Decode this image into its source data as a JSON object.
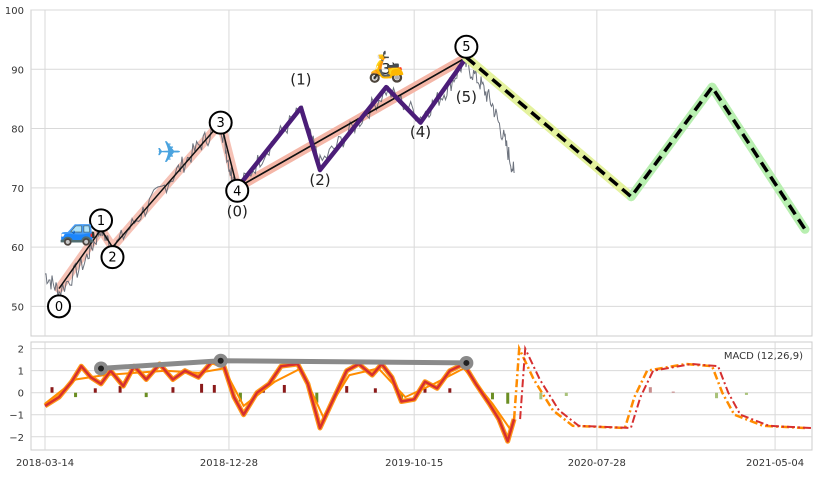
{
  "chart_data": [
    {
      "type": "line",
      "panel": "price",
      "ylim": [
        45,
        100
      ],
      "yticks": [
        50,
        60,
        70,
        80,
        90,
        100
      ],
      "grid": true,
      "price_path": [
        {
          "x": "2018-03-14",
          "y": 55.5
        },
        {
          "x": "2018-04-05",
          "y": 52.5
        },
        {
          "x": "2018-05-15",
          "y": 57.5
        },
        {
          "x": "2018-06-10",
          "y": 63.2
        },
        {
          "x": "2018-06-28",
          "y": 59.6
        },
        {
          "x": "2018-08-15",
          "y": 66.0
        },
        {
          "x": "2018-10-01",
          "y": 72.0
        },
        {
          "x": "2018-11-10",
          "y": 77.0
        },
        {
          "x": "2018-12-15",
          "y": 80.8
        },
        {
          "x": "2018-12-30",
          "y": 73.0
        },
        {
          "x": "2019-01-10",
          "y": 69.5
        },
        {
          "x": "2019-03-01",
          "y": 77.0
        },
        {
          "x": "2019-04-20",
          "y": 83.0
        },
        {
          "x": "2019-05-20",
          "y": 74.0
        },
        {
          "x": "2019-07-10",
          "y": 80.0
        },
        {
          "x": "2019-09-01",
          "y": 86.5
        },
        {
          "x": "2019-10-25",
          "y": 82.0
        },
        {
          "x": "2019-12-01",
          "y": 86.0
        },
        {
          "x": "2020-01-01",
          "y": 91.2
        },
        {
          "x": "2020-01-25",
          "y": 88.0
        },
        {
          "x": "2020-02-15",
          "y": 84.0
        },
        {
          "x": "2020-03-05",
          "y": 78.0
        },
        {
          "x": "2020-03-20",
          "y": 72.5
        }
      ],
      "primary_wave": [
        {
          "label": "0",
          "x": "2018-04-05",
          "y": 53.0,
          "label_y": 50.0
        },
        {
          "label": "1",
          "x": "2018-06-10",
          "y": 63.0,
          "label_y": 64.5
        },
        {
          "label": "2",
          "x": "2018-06-28",
          "y": 60.0,
          "label_y": 58.3
        },
        {
          "label": "3",
          "x": "2018-12-15",
          "y": 81.0,
          "label_y": 81.0
        },
        {
          "label": "4",
          "x": "2019-01-10",
          "y": 70.0,
          "label_y": 69.5
        },
        {
          "label": "5",
          "x": "2020-01-05",
          "y": 92.0,
          "label_y": 93.8
        }
      ],
      "subwave": {
        "points": [
          {
            "x": "2019-01-10",
            "y": 70.0
          },
          {
            "x": "2019-04-20",
            "y": 83.5
          },
          {
            "x": "2019-05-20",
            "y": 73.0
          },
          {
            "x": "2019-09-01",
            "y": 87.0
          },
          {
            "x": "2019-10-25",
            "y": 81.0
          },
          {
            "x": "2020-01-05",
            "y": 92.0
          }
        ],
        "labels": [
          {
            "text": "(0)",
            "x": "2019-01-10",
            "y": 65.2
          },
          {
            "text": "(1)",
            "x": "2019-04-20",
            "y": 87.4
          },
          {
            "text": "(2)",
            "x": "2019-05-20",
            "y": 70.5
          },
          {
            "text": "(3)",
            "x": "2019-09-01",
            "y": 89.2
          },
          {
            "text": "(4)",
            "x": "2019-10-25",
            "y": 78.6
          },
          {
            "text": "(5)",
            "x": "2020-01-05",
            "y": 84.5
          }
        ]
      },
      "forecast": [
        {
          "x": "2020-01-05",
          "y": 92.0
        },
        {
          "x": "2020-09-20",
          "y": 68.5
        },
        {
          "x": "2021-01-25",
          "y": 87.0
        },
        {
          "x": "2021-06-20",
          "y": 63.0
        }
      ],
      "icons": [
        {
          "name": "car-icon",
          "glyph": "🚙",
          "x": "2018-05-05",
          "y": 63.0
        },
        {
          "name": "airplane-icon",
          "glyph": "✈",
          "x": "2018-09-25",
          "y": 76.0
        },
        {
          "name": "scooter-icon",
          "glyph": "🛵",
          "x": "2019-09-01",
          "y": 90.5
        }
      ],
      "colors": {
        "price": "#5d6470",
        "primary_band": "#f4b3a4",
        "primary_line": "#111111",
        "subwave": "#4b1d78",
        "subwave_band": "#f4b3a4",
        "forecast_band_1": "#e4f29e",
        "forecast_band_2": "#b8efb0",
        "forecast_line": "#000000"
      }
    },
    {
      "type": "line",
      "panel": "macd",
      "legend": "MACD (12,26,9)",
      "ylim": [
        -2.6,
        2.3
      ],
      "yticks": [
        -2,
        -1,
        0,
        1,
        2
      ],
      "xlim": [
        "2018-02-20",
        "2021-07-01"
      ],
      "xticks": [
        "2018-03-14",
        "2018-12-28",
        "2019-10-15",
        "2020-07-28",
        "2021-05-04"
      ],
      "macd": [
        {
          "x": "2018-03-14",
          "y": -0.6
        },
        {
          "x": "2018-04-05",
          "y": -0.2
        },
        {
          "x": "2018-04-25",
          "y": 0.5
        },
        {
          "x": "2018-05-10",
          "y": 1.2
        },
        {
          "x": "2018-05-25",
          "y": 0.7
        },
        {
          "x": "2018-06-10",
          "y": 0.4
        },
        {
          "x": "2018-06-25",
          "y": 1.0
        },
        {
          "x": "2018-07-15",
          "y": 0.3
        },
        {
          "x": "2018-08-01",
          "y": 1.2
        },
        {
          "x": "2018-08-20",
          "y": 0.6
        },
        {
          "x": "2018-09-10",
          "y": 1.3
        },
        {
          "x": "2018-10-01",
          "y": 0.6
        },
        {
          "x": "2018-10-20",
          "y": 1.0
        },
        {
          "x": "2018-11-10",
          "y": 0.7
        },
        {
          "x": "2018-12-01",
          "y": 1.4
        },
        {
          "x": "2018-12-20",
          "y": 1.2
        },
        {
          "x": "2019-01-05",
          "y": -0.2
        },
        {
          "x": "2019-01-20",
          "y": -1.0
        },
        {
          "x": "2019-02-10",
          "y": 0.0
        },
        {
          "x": "2019-03-01",
          "y": 0.4
        },
        {
          "x": "2019-03-20",
          "y": 1.2
        },
        {
          "x": "2019-04-15",
          "y": 1.3
        },
        {
          "x": "2019-05-01",
          "y": 0.4
        },
        {
          "x": "2019-05-20",
          "y": -1.6
        },
        {
          "x": "2019-06-10",
          "y": -0.3
        },
        {
          "x": "2019-07-01",
          "y": 1.0
        },
        {
          "x": "2019-07-20",
          "y": 1.3
        },
        {
          "x": "2019-08-10",
          "y": 0.8
        },
        {
          "x": "2019-08-25",
          "y": 1.3
        },
        {
          "x": "2019-09-10",
          "y": 0.7
        },
        {
          "x": "2019-09-25",
          "y": -0.4
        },
        {
          "x": "2019-10-15",
          "y": -0.3
        },
        {
          "x": "2019-11-01",
          "y": 0.5
        },
        {
          "x": "2019-11-20",
          "y": 0.2
        },
        {
          "x": "2019-12-10",
          "y": 1.0
        },
        {
          "x": "2020-01-01",
          "y": 1.3
        },
        {
          "x": "2020-01-20",
          "y": 0.4
        },
        {
          "x": "2020-02-10",
          "y": -0.5
        },
        {
          "x": "2020-02-25",
          "y": -1.2
        },
        {
          "x": "2020-03-10",
          "y": -2.2
        },
        {
          "x": "2020-03-20",
          "y": -1.2
        }
      ],
      "signal": [
        {
          "x": "2018-03-14",
          "y": -0.5
        },
        {
          "x": "2018-05-01",
          "y": 0.6
        },
        {
          "x": "2018-06-15",
          "y": 0.8
        },
        {
          "x": "2018-08-01",
          "y": 0.9
        },
        {
          "x": "2018-09-20",
          "y": 1.0
        },
        {
          "x": "2018-11-10",
          "y": 0.9
        },
        {
          "x": "2018-12-20",
          "y": 1.1
        },
        {
          "x": "2019-01-20",
          "y": -0.6
        },
        {
          "x": "2019-03-10",
          "y": 0.5
        },
        {
          "x": "2019-04-20",
          "y": 1.1
        },
        {
          "x": "2019-05-25",
          "y": -1.1
        },
        {
          "x": "2019-07-05",
          "y": 0.8
        },
        {
          "x": "2019-08-20",
          "y": 1.1
        },
        {
          "x": "2019-10-01",
          "y": -0.2
        },
        {
          "x": "2019-11-15",
          "y": 0.4
        },
        {
          "x": "2020-01-01",
          "y": 1.1
        },
        {
          "x": "2020-02-15",
          "y": -0.5
        },
        {
          "x": "2020-03-15",
          "y": -1.7
        }
      ],
      "macd_forecast": [
        {
          "x": "2020-03-20",
          "y": -1.2
        },
        {
          "x": "2020-03-28",
          "y": 2.0
        },
        {
          "x": "2020-04-20",
          "y": 0.6
        },
        {
          "x": "2020-05-20",
          "y": -0.8
        },
        {
          "x": "2020-06-20",
          "y": -1.5
        },
        {
          "x": "2020-09-10",
          "y": -1.6
        },
        {
          "x": "2020-09-25",
          "y": -0.2
        },
        {
          "x": "2020-10-15",
          "y": 1.0
        },
        {
          "x": "2020-12-15",
          "y": 1.3
        },
        {
          "x": "2021-01-25",
          "y": 1.2
        },
        {
          "x": "2021-02-10",
          "y": 0.0
        },
        {
          "x": "2021-03-01",
          "y": -1.0
        },
        {
          "x": "2021-04-15",
          "y": -1.5
        },
        {
          "x": "2021-06-20",
          "y": -1.6
        }
      ],
      "divergence": [
        {
          "x": "2018-06-10",
          "y": 1.1
        },
        {
          "x": "2018-12-15",
          "y": 1.45
        },
        {
          "x": "2020-01-05",
          "y": 1.35
        }
      ],
      "histogram": [
        {
          "x": "2018-03-25",
          "y": 0.25
        },
        {
          "x": "2018-05-01",
          "y": -0.2
        },
        {
          "x": "2018-06-01",
          "y": 0.2
        },
        {
          "x": "2018-07-10",
          "y": 0.3
        },
        {
          "x": "2018-08-20",
          "y": -0.2
        },
        {
          "x": "2018-10-01",
          "y": 0.25
        },
        {
          "x": "2018-11-15",
          "y": 0.4
        },
        {
          "x": "2018-12-05",
          "y": 0.35
        },
        {
          "x": "2019-01-15",
          "y": -0.4
        },
        {
          "x": "2019-02-20",
          "y": 0.2
        },
        {
          "x": "2019-03-25",
          "y": 0.35
        },
        {
          "x": "2019-05-15",
          "y": -0.45
        },
        {
          "x": "2019-07-01",
          "y": 0.3
        },
        {
          "x": "2019-08-15",
          "y": 0.2
        },
        {
          "x": "2019-09-25",
          "y": -0.35
        },
        {
          "x": "2019-11-01",
          "y": 0.2
        },
        {
          "x": "2019-12-10",
          "y": 0.2
        },
        {
          "x": "2020-02-15",
          "y": -0.3
        },
        {
          "x": "2020-03-10",
          "y": -0.5
        }
      ],
      "histogram_forecast": [
        {
          "x": "2020-05-01",
          "y": -0.3
        },
        {
          "x": "2020-06-10",
          "y": -0.15
        },
        {
          "x": "2020-10-20",
          "y": 0.25
        },
        {
          "x": "2020-11-25",
          "y": 0.05
        },
        {
          "x": "2021-02-01",
          "y": -0.25
        },
        {
          "x": "2021-03-20",
          "y": -0.1
        }
      ],
      "colors": {
        "macd": "#d62f2f",
        "macd_shadow": "#ff8c00",
        "signal": "#ff8c00",
        "divergence": "#8a8a8a",
        "hist_pos": "#8b1a1a",
        "hist_neg": "#6b8e23",
        "hist_pos_forecast": "#c98a8a",
        "hist_neg_forecast": "#a9c27a"
      }
    }
  ]
}
